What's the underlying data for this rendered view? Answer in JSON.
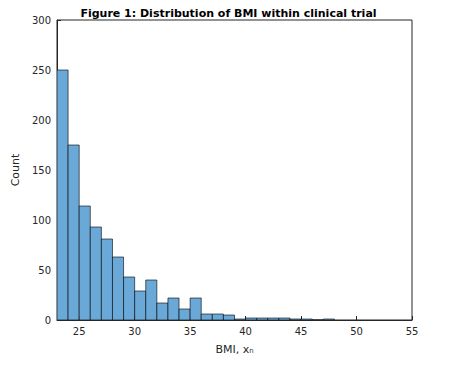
{
  "chart_data": {
    "type": "histogram",
    "title": "Figure 1: Distribution of BMI within clinical trial",
    "x_label": "BMI, xₙ",
    "y_label": "Count",
    "bins": [
      23,
      24,
      25,
      26,
      27,
      28,
      29,
      30,
      31,
      32,
      33,
      34,
      35,
      36,
      37,
      38,
      39,
      40,
      41,
      42,
      43,
      44,
      45,
      46,
      47,
      48
    ],
    "counts": [
      250,
      175,
      114,
      93,
      81,
      63,
      43,
      29,
      40,
      17,
      22,
      11,
      22,
      6,
      6,
      5,
      1,
      2,
      2,
      2,
      2,
      1,
      1,
      0,
      1
    ],
    "color": "#6aa8d8",
    "xlim": [
      23,
      55
    ],
    "xticks": [
      25,
      30,
      35,
      40,
      45,
      50,
      55
    ],
    "ylim": [
      0,
      300
    ],
    "yticks": [
      0,
      50,
      100,
      150,
      200,
      250,
      300
    ],
    "grid": false
  }
}
